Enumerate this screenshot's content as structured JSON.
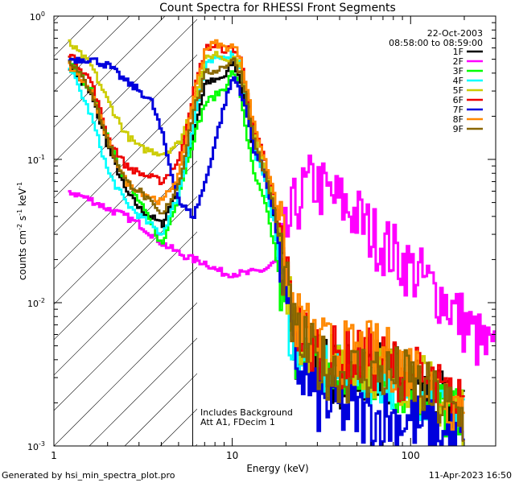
{
  "chart_data": {
    "type": "line",
    "title": "Count Spectra for RHESSI Front Segments",
    "xlabel": "Energy (keV)",
    "ylabel_parts": {
      "a": "counts cm",
      "exp1": "-2",
      "b": " s",
      "exp2": "-1",
      "c": " keV",
      "exp3": "-1"
    },
    "xscale": "log",
    "yscale": "log",
    "xlim": [
      1,
      300
    ],
    "ylim": [
      0.001,
      1
    ],
    "x_ticks": [
      {
        "value": 1,
        "label": "1"
      },
      {
        "value": 10,
        "label": "10"
      },
      {
        "value": 100,
        "label": "100"
      }
    ],
    "y_ticks": [
      {
        "value": 0.001,
        "base": "10",
        "exp": "-3"
      },
      {
        "value": 0.01,
        "base": "10",
        "exp": "-2"
      },
      {
        "value": 0.1,
        "base": "10",
        "exp": "-1"
      },
      {
        "value": 1,
        "base": "10",
        "exp": "0"
      }
    ],
    "date": "22-Oct-2003",
    "time_range": "08:58:00 to 08:59:00",
    "annotations": [
      "Includes Background",
      "Att A1, FDecim 1"
    ],
    "shaded_region_keV": [
      1,
      6
    ],
    "series": [
      {
        "name": "1F",
        "color": "#000000",
        "energies": [
          1.2,
          1.6,
          2,
          2.5,
          3,
          4,
          5,
          6,
          7,
          8,
          9,
          10,
          11,
          12,
          13,
          15,
          17,
          19,
          22,
          30,
          40,
          60,
          100,
          200
        ],
        "values": [
          0.45,
          0.28,
          0.12,
          0.06,
          0.045,
          0.035,
          0.07,
          0.15,
          0.35,
          0.35,
          0.38,
          0.48,
          0.35,
          0.2,
          0.12,
          0.08,
          0.04,
          0.015,
          0.005,
          0.004,
          0.003,
          0.0035,
          0.0028,
          0.0015
        ]
      },
      {
        "name": "2F",
        "color": "#ff00ff",
        "energies": [
          1.2,
          1.6,
          2,
          2.5,
          3,
          3.5,
          4,
          5,
          6,
          7,
          8,
          9,
          10,
          12,
          15,
          18,
          20,
          22,
          25,
          28,
          30,
          35,
          40,
          50,
          60,
          80,
          100,
          150,
          200,
          250,
          300
        ],
        "values": [
          0.06,
          0.052,
          0.045,
          0.04,
          0.035,
          0.03,
          0.026,
          0.022,
          0.02,
          0.019,
          0.017,
          0.016,
          0.016,
          0.016,
          0.017,
          0.02,
          0.03,
          0.045,
          0.06,
          0.07,
          0.065,
          0.055,
          0.05,
          0.04,
          0.03,
          0.022,
          0.017,
          0.011,
          0.007,
          0.005,
          0.004
        ]
      },
      {
        "name": "3F",
        "color": "#00ff00",
        "energies": [
          1.2,
          1.6,
          2,
          2.5,
          3,
          4,
          5,
          6,
          7,
          8,
          9,
          10,
          11,
          12,
          13,
          15,
          17,
          19,
          22,
          30,
          40,
          60,
          100,
          200
        ],
        "values": [
          0.5,
          0.3,
          0.14,
          0.07,
          0.05,
          0.025,
          0.06,
          0.14,
          0.25,
          0.28,
          0.32,
          0.42,
          0.28,
          0.14,
          0.08,
          0.05,
          0.025,
          0.01,
          0.005,
          0.003,
          0.0028,
          0.0032,
          0.0025,
          0.0014
        ]
      },
      {
        "name": "4F",
        "color": "#00ffff",
        "energies": [
          1.2,
          1.6,
          2,
          2.5,
          3,
          4,
          5,
          6,
          7,
          8,
          9,
          10,
          11,
          12,
          13,
          15,
          17,
          19,
          22,
          30,
          40,
          60,
          100,
          200
        ],
        "values": [
          0.45,
          0.2,
          0.08,
          0.05,
          0.04,
          0.03,
          0.06,
          0.18,
          0.45,
          0.5,
          0.52,
          0.55,
          0.45,
          0.25,
          0.12,
          0.07,
          0.035,
          0.012,
          0.005,
          0.0035,
          0.003,
          0.0033,
          0.0027,
          0.0014
        ]
      },
      {
        "name": "5F",
        "color": "#cccc00",
        "energies": [
          1.2,
          1.6,
          2,
          2.5,
          3,
          4,
          5,
          6,
          7,
          8,
          9,
          10,
          11,
          12,
          13,
          15,
          17,
          19,
          22,
          30,
          40,
          60,
          100,
          200
        ],
        "values": [
          0.65,
          0.45,
          0.25,
          0.15,
          0.12,
          0.11,
          0.13,
          0.25,
          0.5,
          0.55,
          0.5,
          0.52,
          0.45,
          0.28,
          0.15,
          0.09,
          0.05,
          0.02,
          0.006,
          0.004,
          0.0035,
          0.0036,
          0.003,
          0.0016
        ]
      },
      {
        "name": "6F",
        "color": "#ee0000",
        "energies": [
          1.2,
          1.6,
          2,
          2.5,
          3,
          4,
          5,
          6,
          7,
          8,
          9,
          10,
          11,
          12,
          13,
          15,
          17,
          19,
          22,
          30,
          40,
          60,
          100,
          200
        ],
        "values": [
          0.55,
          0.35,
          0.14,
          0.09,
          0.08,
          0.07,
          0.1,
          0.3,
          0.6,
          0.62,
          0.58,
          0.6,
          0.5,
          0.3,
          0.17,
          0.1,
          0.055,
          0.022,
          0.007,
          0.0045,
          0.004,
          0.004,
          0.0032,
          0.0017
        ]
      },
      {
        "name": "7F",
        "color": "#0000dd",
        "energies": [
          1.2,
          1.6,
          2,
          2.5,
          3,
          3.5,
          4,
          4.5,
          5,
          6,
          7,
          8,
          9,
          10,
          11,
          12,
          13,
          15,
          17,
          19,
          22,
          30,
          40,
          60,
          100,
          200
        ],
        "values": [
          0.5,
          0.5,
          0.45,
          0.35,
          0.3,
          0.25,
          0.15,
          0.08,
          0.05,
          0.04,
          0.07,
          0.14,
          0.25,
          0.38,
          0.3,
          0.2,
          0.12,
          0.08,
          0.04,
          0.015,
          0.004,
          0.002,
          0.0018,
          0.0016,
          0.0015,
          0.001
        ]
      },
      {
        "name": "8F",
        "color": "#ff8800",
        "energies": [
          1.2,
          1.6,
          2,
          2.5,
          3,
          4,
          5,
          6,
          7,
          8,
          9,
          10,
          11,
          12,
          13,
          15,
          17,
          19,
          22,
          30,
          40,
          60,
          100,
          200
        ],
        "values": [
          0.45,
          0.3,
          0.13,
          0.07,
          0.06,
          0.05,
          0.08,
          0.28,
          0.6,
          0.65,
          0.6,
          0.62,
          0.52,
          0.3,
          0.18,
          0.1,
          0.06,
          0.025,
          0.008,
          0.005,
          0.0045,
          0.0045,
          0.0035,
          0.0018
        ]
      },
      {
        "name": "9F",
        "color": "#886600",
        "energies": [
          1.2,
          1.6,
          2,
          2.5,
          3,
          4,
          5,
          6,
          7,
          8,
          9,
          10,
          11,
          12,
          13,
          15,
          17,
          19,
          22,
          30,
          40,
          60,
          100,
          200
        ],
        "values": [
          0.5,
          0.3,
          0.13,
          0.07,
          0.06,
          0.04,
          0.07,
          0.22,
          0.4,
          0.42,
          0.45,
          0.5,
          0.4,
          0.25,
          0.14,
          0.08,
          0.045,
          0.018,
          0.006,
          0.0038,
          0.0032,
          0.0034,
          0.0028,
          0.0015
        ]
      }
    ]
  },
  "footer": {
    "generated_by": "Generated by hsi_min_spectra_plot.pro",
    "timestamp": "11-Apr-2023 16:50"
  }
}
